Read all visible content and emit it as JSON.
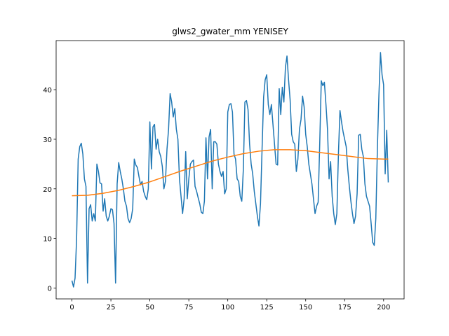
{
  "chart_data": {
    "type": "line",
    "title": "glws2_gwater_mm YENISEY",
    "xlim": [
      -10.15,
      213.15
    ],
    "ylim": [
      -2.2,
      49.9
    ],
    "xticks": [
      0,
      25,
      50,
      75,
      100,
      125,
      150,
      175,
      200
    ],
    "yticks": [
      0,
      10,
      20,
      30,
      40
    ],
    "series": [
      {
        "color": "#1f77b4",
        "x": [
          0,
          1,
          2,
          3,
          4,
          5,
          6,
          7,
          8,
          9,
          10,
          11,
          12,
          13,
          14,
          15,
          16,
          17,
          18,
          19,
          20,
          21,
          22,
          23,
          24,
          25,
          26,
          27,
          28,
          29,
          30,
          31,
          32,
          33,
          34,
          35,
          36,
          37,
          38,
          39,
          40,
          41,
          42,
          43,
          44,
          45,
          46,
          47,
          48,
          49,
          50,
          51,
          52,
          53,
          54,
          55,
          56,
          57,
          58,
          59,
          60,
          61,
          62,
          63,
          64,
          65,
          66,
          67,
          68,
          69,
          70,
          71,
          72,
          73,
          74,
          75,
          76,
          77,
          78,
          79,
          80,
          81,
          82,
          83,
          84,
          85,
          86,
          87,
          88,
          89,
          90,
          91,
          92,
          93,
          94,
          95,
          96,
          97,
          98,
          99,
          100,
          101,
          102,
          103,
          104,
          105,
          106,
          107,
          108,
          109,
          110,
          111,
          112,
          113,
          114,
          115,
          116,
          117,
          118,
          119,
          120,
          121,
          122,
          123,
          124,
          125,
          126,
          127,
          128,
          129,
          130,
          131,
          132,
          133,
          134,
          135,
          136,
          137,
          138,
          139,
          140,
          141,
          142,
          143,
          144,
          145,
          146,
          147,
          148,
          149,
          150,
          151,
          152,
          153,
          154,
          155,
          156,
          157,
          158,
          159,
          160,
          161,
          162,
          163,
          164,
          165,
          166,
          167,
          168,
          169,
          170,
          171,
          172,
          173,
          174,
          175,
          176,
          177,
          178,
          179,
          180,
          181,
          182,
          183,
          184,
          185,
          186,
          187,
          188,
          189,
          190,
          191,
          192,
          193,
          194,
          195,
          196,
          197,
          198,
          199,
          200,
          201,
          202,
          203
        ],
        "values": [
          1.5,
          0.2,
          2,
          10,
          26,
          28.5,
          29.2,
          27,
          22,
          20.5,
          1,
          16,
          16.8,
          13.5,
          15,
          13.5,
          25,
          23.5,
          21.2,
          21,
          15.5,
          18,
          14.5,
          13.5,
          14.5,
          16,
          15.8,
          13,
          1,
          21,
          25.3,
          23.5,
          22,
          20,
          17.5,
          16.5,
          14,
          13.2,
          14,
          16,
          26,
          24.8,
          24.3,
          22.5,
          20.8,
          21.5,
          19.5,
          18.5,
          17.8,
          20,
          33.5,
          24,
          32.5,
          33,
          28,
          30,
          27.5,
          26.5,
          24.5,
          20,
          21.5,
          28,
          32,
          39.2,
          37.5,
          34.5,
          36.2,
          32,
          30,
          22,
          18.5,
          15,
          18,
          27.5,
          18,
          22,
          25,
          25.5,
          25.8,
          20.5,
          19.5,
          18.2,
          17,
          15.3,
          15,
          17.5,
          30.3,
          22,
          30.5,
          32,
          20,
          29.5,
          29.5,
          29,
          25,
          23.5,
          22.5,
          23.5,
          19,
          20,
          35.5,
          37,
          37.2,
          35.5,
          27,
          26,
          22,
          21.5,
          18.5,
          17.5,
          24,
          37.5,
          37.8,
          36,
          29,
          25,
          23,
          19.5,
          17,
          14.5,
          12.5,
          17,
          28,
          38.5,
          42,
          43,
          37,
          35,
          37,
          33,
          29,
          25,
          24.8,
          40.2,
          35,
          40.5,
          37.5,
          44.5,
          46.8,
          42,
          38,
          31,
          29.5,
          29,
          23.5,
          26,
          32,
          34,
          38.7,
          36.5,
          31,
          28.5,
          25,
          23,
          21,
          18,
          15,
          16.5,
          17.3,
          29,
          41.8,
          40.8,
          41.5,
          37,
          32,
          22,
          25.5,
          18.5,
          15,
          12.8,
          15,
          27,
          35.8,
          33.5,
          31.5,
          30,
          28.5,
          24,
          20.5,
          17.5,
          15,
          13,
          14.5,
          19,
          30.8,
          31,
          28,
          26.5,
          21,
          18.5,
          17.5,
          16.5,
          13,
          9.2,
          8.6,
          14,
          28,
          39,
          47.5,
          43,
          41,
          23,
          31.8,
          21.3
        ]
      },
      {
        "color": "#ff7f0e",
        "x": [
          0,
          10,
          20,
          30,
          40,
          50,
          60,
          70,
          80,
          90,
          100,
          110,
          120,
          130,
          140,
          150,
          160,
          170,
          180,
          190,
          200,
          203
        ],
        "values": [
          18.6,
          18.7,
          19.1,
          19.7,
          20.5,
          21.4,
          22.5,
          23.6,
          24.6,
          25.6,
          26.4,
          27.1,
          27.6,
          27.9,
          27.9,
          27.7,
          27.3,
          26.9,
          26.5,
          26.1,
          26.0,
          26.0
        ]
      }
    ]
  }
}
